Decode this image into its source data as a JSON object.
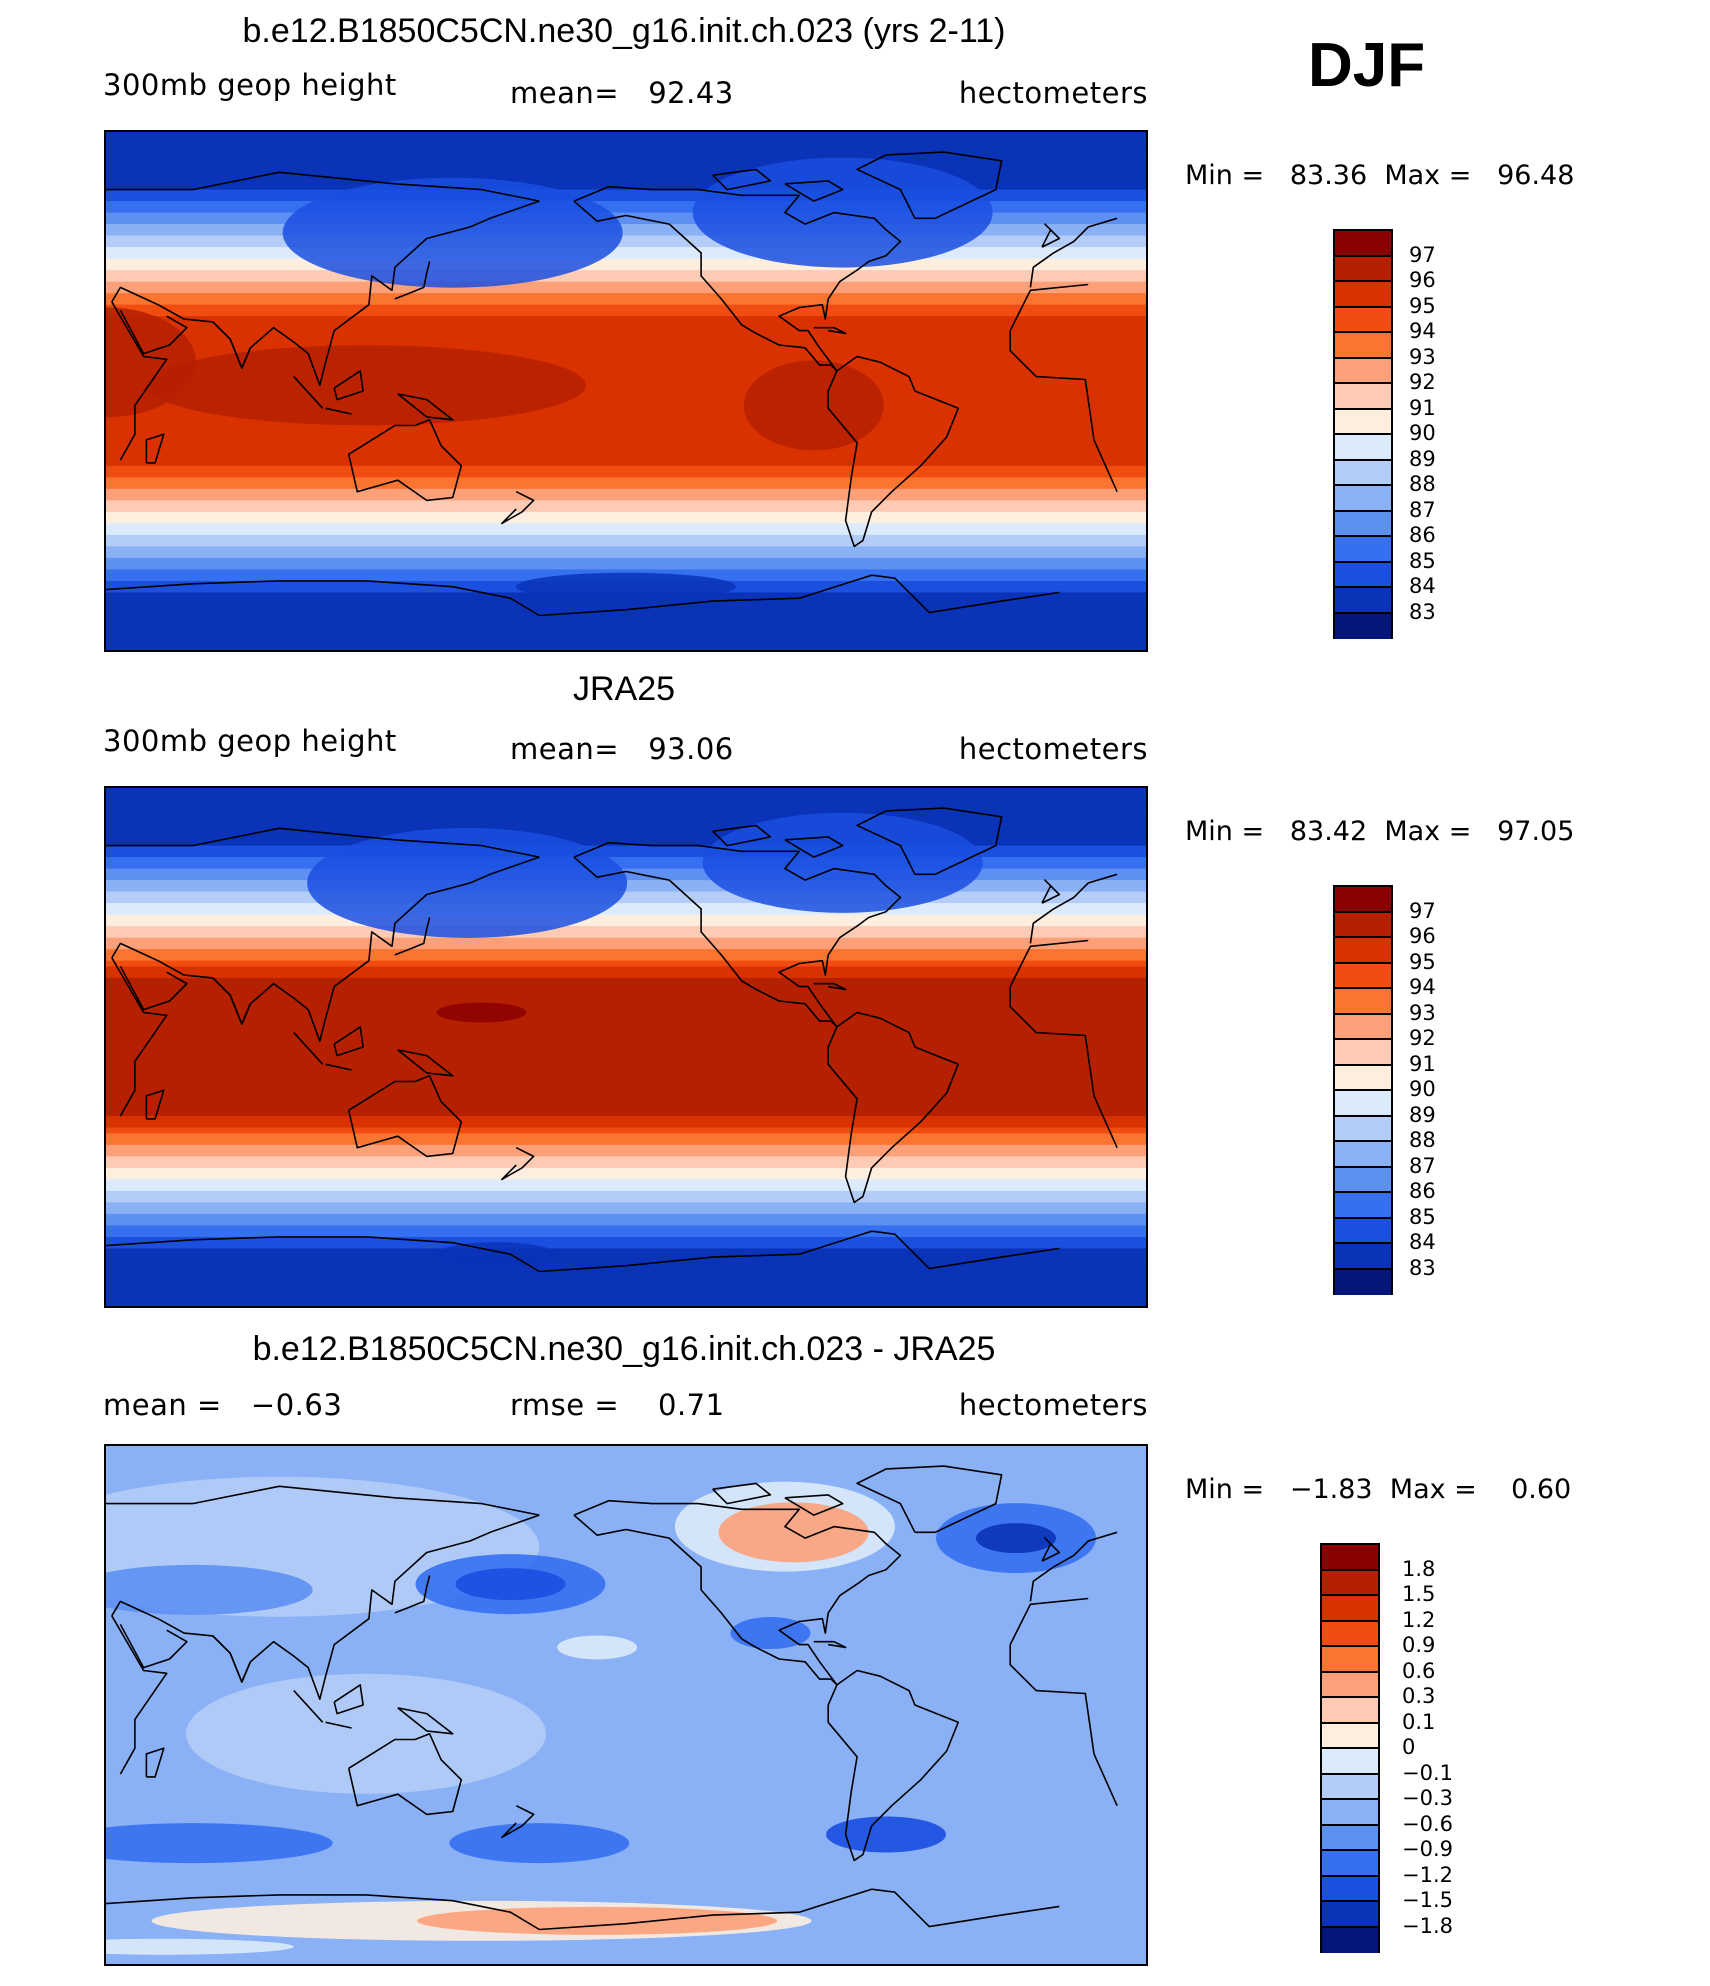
{
  "season": "DJF",
  "panels": [
    {
      "title": "b.e12.B1850C5CN.ne30_g16.init.ch.023 (yrs 2-11)",
      "left": "300mb geop height",
      "center": "mean=   92.43",
      "right": "hectometers",
      "minmax": "Min =   83.36  Max =   96.48",
      "scale": "abs",
      "variant": "model"
    },
    {
      "title": "JRA25",
      "left": "300mb geop height",
      "center": "mean=   93.06",
      "right": "hectometers",
      "minmax": "Min =   83.42  Max =   97.05",
      "scale": "abs",
      "variant": "obs"
    },
    {
      "title": "b.e12.B1850C5CN.ne30_g16.init.ch.023 - JRA25",
      "left": "mean =   −0.63",
      "center": "rmse =    0.71",
      "right": "hectometers",
      "minmax": "Min =   −1.83  Max =    0.60",
      "scale": "diff",
      "variant": "diff"
    }
  ],
  "chart_data": {
    "type": "heatmap",
    "projection": "cylindrical equidistant, Pacific-centred",
    "fields": [
      {
        "name": "model 300mb geop height DJF",
        "units": "hectometers",
        "mean": 92.43,
        "min": 83.36,
        "max": 96.48
      },
      {
        "name": "JRA25 300mb geop height DJF",
        "units": "hectometers",
        "mean": 93.06,
        "min": 83.42,
        "max": 97.05
      },
      {
        "name": "model - JRA25",
        "units": "hectometers",
        "mean": -0.63,
        "rmse": 0.71,
        "min": -1.83,
        "max": 0.6
      }
    ],
    "colorbars": {
      "abs": {
        "labels": [
          "97",
          "96",
          "95",
          "94",
          "93",
          "92",
          "91",
          "90",
          "89",
          "88",
          "87",
          "86",
          "85",
          "84",
          "83"
        ],
        "colors": [
          "#8b0000",
          "#b52000",
          "#d93200",
          "#f24d10",
          "#fb7430",
          "#fca07a",
          "#fdcab4",
          "#fdeee0",
          "#dcebfb",
          "#b4cdf8",
          "#8ab0f6",
          "#5e90f3",
          "#3470ef",
          "#1a4fe0",
          "#0b33b8",
          "#04167a"
        ]
      },
      "diff": {
        "labels": [
          "1.8",
          "1.5",
          "1.2",
          "0.9",
          "0.6",
          "0.3",
          "0.1",
          "0",
          "−0.1",
          "−0.3",
          "−0.6",
          "−0.9",
          "−1.2",
          "−1.5",
          "−1.8"
        ],
        "colors": [
          "#8b0000",
          "#b52000",
          "#d93200",
          "#f24d10",
          "#fb7430",
          "#fca07a",
          "#fdcab4",
          "#fdeee0",
          "#dcebfb",
          "#b4cdf8",
          "#8ab0f6",
          "#5e90f3",
          "#3470ef",
          "#1a4fe0",
          "#0b33b8",
          "#04167a"
        ]
      }
    }
  }
}
